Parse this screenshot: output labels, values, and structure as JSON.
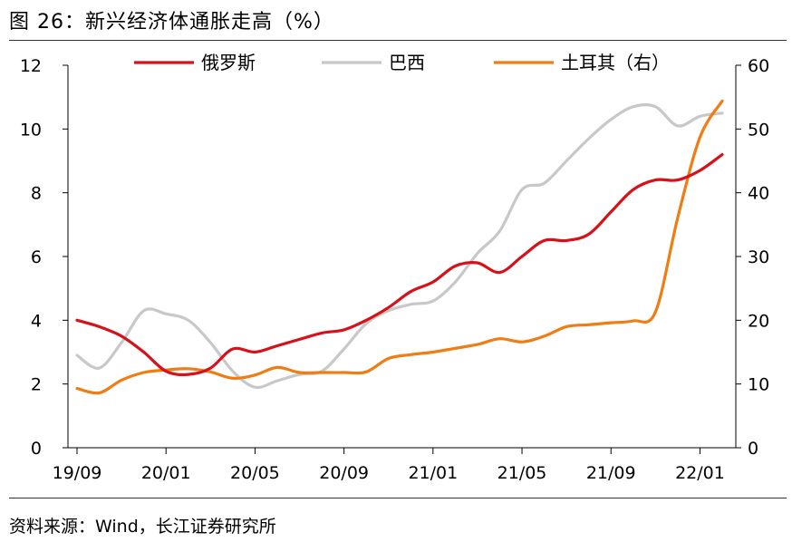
{
  "page": {
    "title": "图 26：新兴经济体通胀走高（%）",
    "source": "资料来源：Wind，长江证券研究所"
  },
  "chart_data": {
    "type": "line",
    "x": [
      "19/09",
      "19/10",
      "19/11",
      "19/12",
      "20/01",
      "20/02",
      "20/03",
      "20/04",
      "20/05",
      "20/06",
      "20/07",
      "20/08",
      "20/09",
      "20/10",
      "20/11",
      "20/12",
      "21/01",
      "21/02",
      "21/03",
      "21/04",
      "21/05",
      "21/06",
      "21/07",
      "21/08",
      "21/09",
      "21/10",
      "21/11",
      "21/12",
      "22/01",
      "22/02"
    ],
    "xticks": [
      "19/09",
      "20/01",
      "20/05",
      "20/09",
      "21/01",
      "21/05",
      "21/09",
      "22/01"
    ],
    "yticks_left": [
      "0",
      "2",
      "4",
      "6",
      "8",
      "10",
      "12"
    ],
    "yticks_right": [
      "0",
      "10",
      "20",
      "30",
      "40",
      "50",
      "60"
    ],
    "ylim_left": [
      0,
      12
    ],
    "ylim_right": [
      0,
      60
    ],
    "legend_position": "top",
    "series": [
      {
        "name": "俄罗斯",
        "axis": "left",
        "color": "#d6111a",
        "values": [
          4.0,
          3.8,
          3.5,
          3.0,
          2.4,
          2.3,
          2.5,
          3.1,
          3.0,
          3.2,
          3.4,
          3.6,
          3.7,
          4.0,
          4.4,
          4.9,
          5.2,
          5.7,
          5.8,
          5.5,
          6.0,
          6.5,
          6.5,
          6.7,
          7.4,
          8.1,
          8.4,
          8.4,
          8.7,
          9.2
        ]
      },
      {
        "name": "巴西",
        "axis": "left",
        "color": "#c8c8c8",
        "values": [
          2.9,
          2.5,
          3.3,
          4.3,
          4.2,
          4.0,
          3.3,
          2.4,
          1.9,
          2.1,
          2.3,
          2.4,
          3.1,
          3.9,
          4.3,
          4.5,
          4.6,
          5.2,
          6.1,
          6.8,
          8.1,
          8.3,
          9.0,
          9.7,
          10.3,
          10.7,
          10.7,
          10.1,
          10.4,
          10.5
        ]
      },
      {
        "name": "土耳其（右）",
        "axis": "right",
        "color": "#f07d13",
        "values": [
          9.3,
          8.6,
          10.6,
          11.8,
          12.2,
          12.4,
          11.9,
          10.9,
          11.4,
          12.6,
          11.8,
          11.8,
          11.8,
          11.9,
          14.0,
          14.6,
          15.0,
          15.6,
          16.2,
          17.1,
          16.6,
          17.5,
          19.0,
          19.3,
          19.6,
          19.9,
          21.3,
          36.1,
          48.7,
          54.4
        ]
      }
    ]
  }
}
